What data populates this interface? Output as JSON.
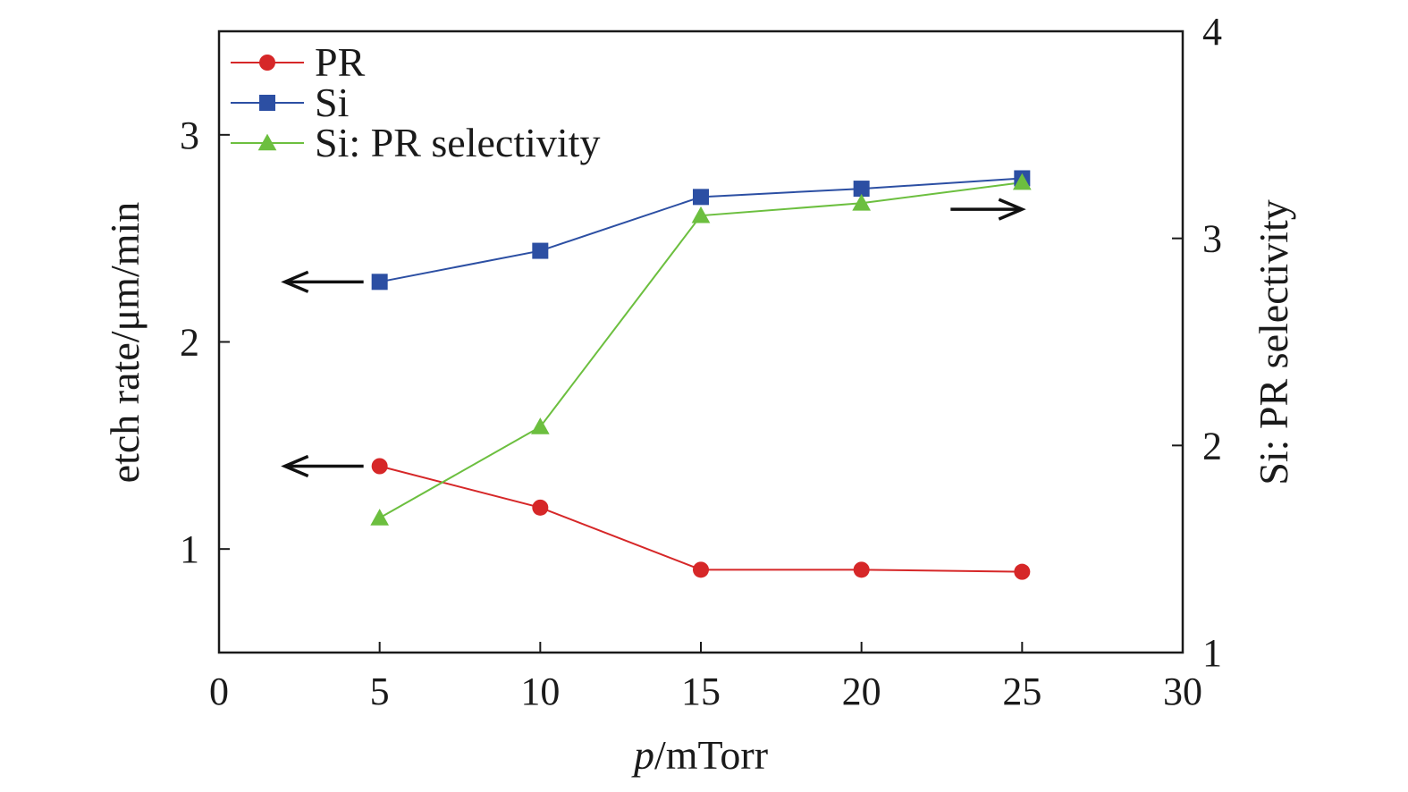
{
  "chart_data": {
    "type": "line",
    "x": [
      5,
      10,
      15,
      20,
      25
    ],
    "xlim": [
      0,
      30
    ],
    "x_ticks": [
      0,
      5,
      10,
      15,
      20,
      25,
      30
    ],
    "x_tick_labels": [
      "0",
      "5",
      "10",
      "15",
      "20",
      "25",
      "30"
    ],
    "xlabel_italic": "p",
    "xlabel_rest": "/mTorr",
    "ylabel_left": "etch rate/μm/min",
    "ylabel_right": "Si: PR selectivity",
    "ylim_left": [
      0.5,
      3.5
    ],
    "ylim_right": [
      1,
      4
    ],
    "y_ticks_left": [
      1,
      2,
      3
    ],
    "y_tick_labels_left": [
      "1",
      "2",
      "3"
    ],
    "y_ticks_right": [
      1,
      2,
      3,
      4
    ],
    "y_tick_labels_right": [
      "1",
      "2",
      "3",
      "4"
    ],
    "legend_position": "top-left",
    "series": [
      {
        "name": "PR",
        "axis": "left",
        "marker": "circle",
        "color": "#d62728",
        "values": [
          1.4,
          1.2,
          0.9,
          0.9,
          0.89
        ]
      },
      {
        "name": "Si",
        "axis": "left",
        "marker": "square",
        "color": "#2c4fa3",
        "values": [
          2.29,
          2.44,
          2.7,
          2.74,
          2.79
        ]
      },
      {
        "name": "Si: PR selectivity",
        "axis": "right",
        "marker": "triangle",
        "color": "#6cbf3f",
        "values": [
          1.65,
          2.09,
          3.11,
          3.17,
          3.27
        ]
      }
    ],
    "arrows": [
      {
        "points_to": "left",
        "series": "Si"
      },
      {
        "points_to": "left",
        "series": "PR"
      },
      {
        "points_to": "right",
        "series": "Si: PR selectivity"
      }
    ]
  }
}
